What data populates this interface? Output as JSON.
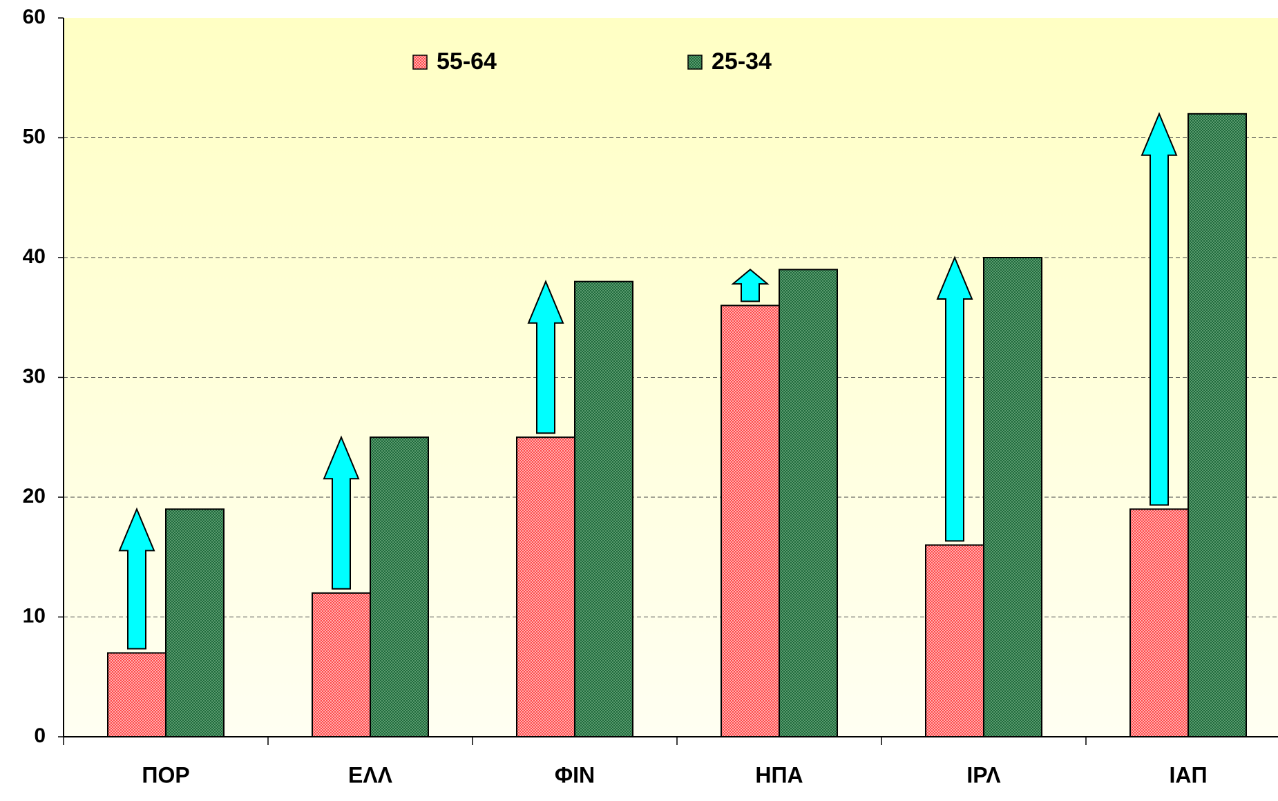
{
  "chart_data": {
    "type": "bar",
    "categories": [
      "ΠΟΡ",
      "ΕΛΛ",
      "ΦΙΝ",
      "ΗΠΑ",
      "ΙΡΛ",
      "ΙΑΠ"
    ],
    "series": [
      {
        "name": "55-64",
        "color": "#ff3b3b",
        "values": [
          7,
          12,
          25,
          36,
          16,
          19
        ]
      },
      {
        "name": "25-34",
        "color": "#2e7d4f",
        "values": [
          19,
          25,
          38,
          39,
          40,
          52
        ]
      }
    ],
    "ylim": [
      0,
      60
    ],
    "yticks": [
      0,
      10,
      20,
      30,
      40,
      50,
      60
    ],
    "grid": true
  }
}
